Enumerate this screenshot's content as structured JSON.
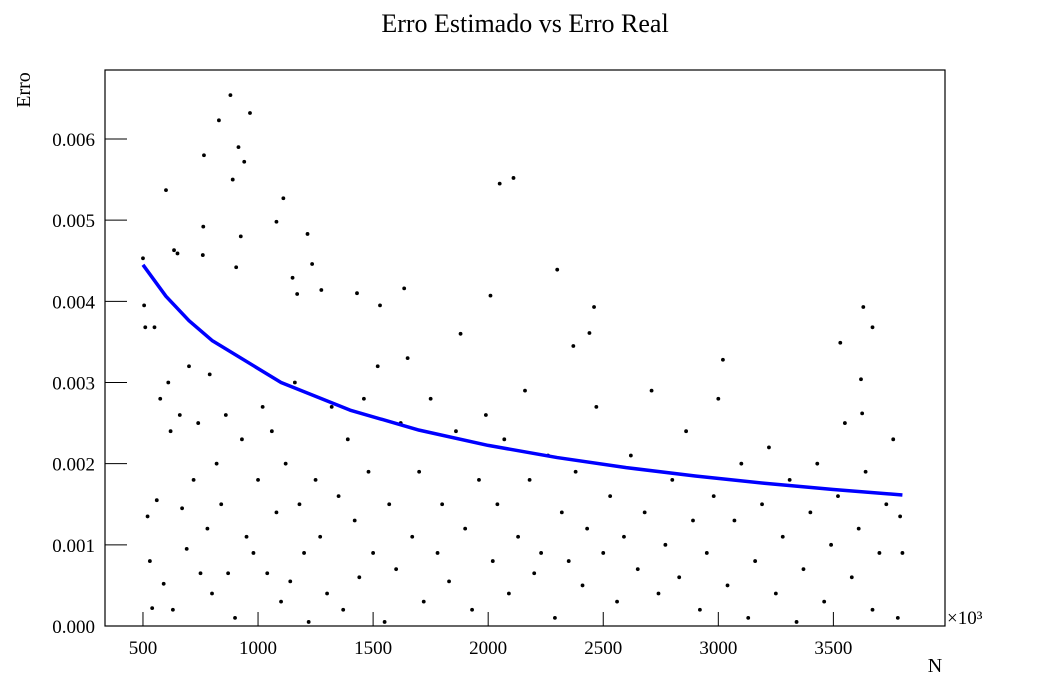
{
  "chart_data": {
    "type": "scatter",
    "title": "Erro Estimado vs Erro Real",
    "x_label": "N",
    "y_label": "Erro",
    "x_multiplier": "×10³",
    "xlim": [
      335,
      3985
    ],
    "ylim": [
      0,
      0.00685
    ],
    "xticks": [
      500,
      1000,
      1500,
      2000,
      2500,
      3000,
      3500
    ],
    "yticks": [
      {
        "value": 0,
        "label": "0.000"
      },
      {
        "value": 0.001,
        "label": "0.001"
      },
      {
        "value": 0.002,
        "label": "0.002"
      },
      {
        "value": 0.003,
        "label": "0.003"
      },
      {
        "value": 0.004,
        "label": "0.004"
      },
      {
        "value": 0.005,
        "label": "0.005"
      },
      {
        "value": 0.006,
        "label": "0.006"
      }
    ],
    "series": [
      {
        "color": "#000000",
        "x": [
          500,
          505,
          510,
          550,
          600,
          635,
          650,
          760,
          762,
          765,
          830,
          880,
          890,
          915,
          940,
          965,
          925,
          905,
          1080,
          1110,
          1150,
          1215,
          1235,
          1170,
          1275,
          1530,
          1635,
          1430,
          2050,
          2110,
          2010,
          2300,
          2370,
          2440,
          2460,
          3020,
          3630,
          3530,
          3670,
          3620,
          3625,
          520,
          530,
          540,
          560,
          575,
          590,
          610,
          620,
          630,
          660,
          670,
          690,
          700,
          720,
          740,
          750,
          780,
          790,
          800,
          820,
          840,
          860,
          870,
          900,
          930,
          950,
          980,
          1000,
          1020,
          1040,
          1060,
          1080,
          1100,
          1120,
          1140,
          1160,
          1180,
          1200,
          1220,
          1250,
          1270,
          1300,
          1320,
          1350,
          1370,
          1390,
          1420,
          1440,
          1460,
          1480,
          1500,
          1520,
          1550,
          1570,
          1600,
          1620,
          1650,
          1670,
          1700,
          1720,
          1750,
          1780,
          1800,
          1830,
          1860,
          1880,
          1900,
          1930,
          1960,
          1990,
          2020,
          2040,
          2070,
          2090,
          2130,
          2160,
          2180,
          2200,
          2230,
          2260,
          2290,
          2320,
          2350,
          2380,
          2410,
          2430,
          2470,
          2500,
          2530,
          2560,
          2590,
          2620,
          2650,
          2680,
          2710,
          2740,
          2770,
          2800,
          2830,
          2860,
          2890,
          2920,
          2950,
          2980,
          3000,
          3040,
          3070,
          3100,
          3130,
          3160,
          3190,
          3220,
          3250,
          3280,
          3310,
          3340,
          3370,
          3400,
          3430,
          3460,
          3490,
          3520,
          3550,
          3580,
          3610,
          3640,
          3670,
          3700,
          3730,
          3760,
          3780,
          3800,
          3790
        ],
        "values": [
          0.00453,
          0.00395,
          0.00368,
          0.00368,
          0.00537,
          0.00463,
          0.00459,
          0.00457,
          0.00492,
          0.0058,
          0.00623,
          0.00654,
          0.0055,
          0.0059,
          0.00572,
          0.00632,
          0.0048,
          0.00442,
          0.00498,
          0.00527,
          0.00429,
          0.00483,
          0.00446,
          0.00409,
          0.00414,
          0.00395,
          0.00416,
          0.0041,
          0.00545,
          0.00552,
          0.00407,
          0.00439,
          0.00345,
          0.00361,
          0.00393,
          0.00328,
          0.00393,
          0.00349,
          0.00368,
          0.00304,
          0.00262,
          0.00135,
          0.0008,
          0.00022,
          0.00155,
          0.0028,
          0.00052,
          0.003,
          0.0024,
          0.0002,
          0.0026,
          0.00145,
          0.00095,
          0.0032,
          0.0018,
          0.0025,
          0.00065,
          0.0012,
          0.0031,
          0.0004,
          0.002,
          0.0015,
          0.0026,
          0.00065,
          0.0001,
          0.0023,
          0.0011,
          0.0009,
          0.0018,
          0.0027,
          0.00065,
          0.0024,
          0.0014,
          0.0003,
          0.002,
          0.00055,
          0.003,
          0.0015,
          0.0009,
          5e-05,
          0.0018,
          0.0011,
          0.0004,
          0.0027,
          0.0016,
          0.0002,
          0.0023,
          0.0013,
          0.0006,
          0.0028,
          0.0019,
          0.0009,
          0.0032,
          5e-05,
          0.0015,
          0.0007,
          0.0025,
          0.0033,
          0.0011,
          0.0019,
          0.0003,
          0.0028,
          0.0009,
          0.0015,
          0.00055,
          0.0024,
          0.0036,
          0.0012,
          0.0002,
          0.0018,
          0.0026,
          0.0008,
          0.0015,
          0.0023,
          0.0004,
          0.0011,
          0.0029,
          0.0018,
          0.00065,
          0.0009,
          0.0021,
          0.0001,
          0.0014,
          0.0008,
          0.0019,
          0.0005,
          0.0012,
          0.0027,
          0.0009,
          0.0016,
          0.0003,
          0.0011,
          0.0021,
          0.0007,
          0.0014,
          0.0029,
          0.0004,
          0.001,
          0.0018,
          0.0006,
          0.0024,
          0.0013,
          0.0002,
          0.0009,
          0.0016,
          0.0028,
          0.0005,
          0.0013,
          0.002,
          0.0001,
          0.0008,
          0.0015,
          0.0022,
          0.0004,
          0.0011,
          0.0018,
          5e-05,
          0.0007,
          0.0014,
          0.002,
          0.0003,
          0.001,
          0.0016,
          0.0025,
          0.0006,
          0.0012,
          0.0019,
          0.0002,
          0.0009,
          0.0015,
          0.0023,
          0.0001,
          0.0009,
          0.00135
        ]
      },
      {
        "type": "line",
        "color": "#0000ff",
        "x": [
          500,
          600,
          700,
          800,
          1100,
          1400,
          1700,
          2000,
          2300,
          2600,
          2900,
          3200,
          3500,
          3800
        ],
        "values": [
          0.00445,
          0.004062,
          0.003761,
          0.003518,
          0.003,
          0.002659,
          0.002413,
          0.002225,
          0.002075,
          0.001951,
          0.001848,
          0.001759,
          0.001682,
          0.001614
        ]
      }
    ]
  }
}
